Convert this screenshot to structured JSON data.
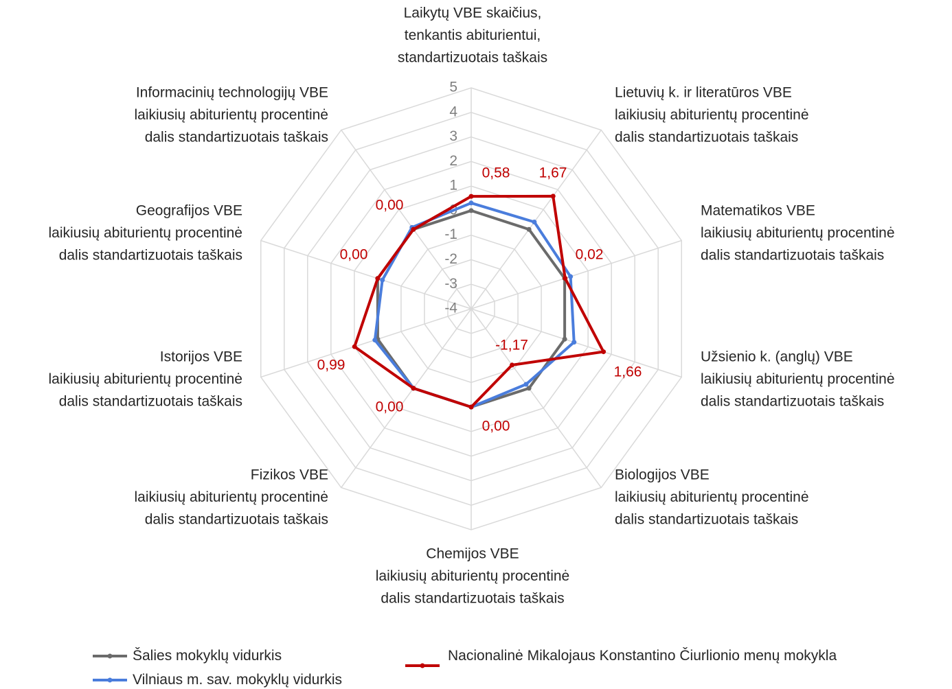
{
  "chart_data": {
    "type": "radar",
    "categories": [
      [
        "Laikytų VBE skaičius,",
        "tenkantis abiturientui,",
        "standartizuotais taškais"
      ],
      [
        "Lietuvių k. ir literatūros VBE",
        "laikiusių abiturientų procentinė",
        "dalis standartizuotais taškais"
      ],
      [
        "Matematikos VBE",
        "laikiusių abiturientų procentinė",
        "dalis standartizuotais taškais"
      ],
      [
        "Užsienio k. (anglų) VBE",
        "laikiusių abiturientų procentinė",
        "dalis standartizuotais taškais"
      ],
      [
        "Biologijos VBE",
        "laikiusių abiturientų procentinė",
        "dalis standartizuotais taškais"
      ],
      [
        "Chemijos VBE",
        "laikiusių abiturientų procentinė",
        "dalis standartizuotais taškais"
      ],
      [
        "Fizikos VBE",
        "laikiusių abiturientų procentinė",
        "dalis standartizuotais taškais"
      ],
      [
        "Istorijos VBE",
        "laikiusių abiturientų procentinė",
        "dalis standartizuotais taškais"
      ],
      [
        "Geografijos VBE",
        "laikiusių abiturientų procentinė",
        "dalis standartizuotais taškais"
      ],
      [
        "Informacinių technologijų VBE",
        "laikiusių abiturientų procentinė",
        "dalis standartizuotais taškais"
      ]
    ],
    "series": [
      {
        "name": "Šalies mokyklų vidurkis",
        "color": "#6b6b6b",
        "values": [
          0,
          0,
          0,
          0,
          0,
          0,
          0,
          0,
          0,
          0
        ]
      },
      {
        "name": "Vilniaus m. sav. mokyklų vidurkis",
        "color": "#4a7ddc",
        "values": [
          0.31,
          0.37,
          0.25,
          0.4,
          -0.2,
          0,
          0,
          0.12,
          -0.2,
          0.1
        ]
      },
      {
        "name": "Nacionalinė Mikalojaus Konstantino Čiurlionio menų mokykla",
        "color": "#c00000",
        "values": [
          0.58,
          1.67,
          0.02,
          1.66,
          -1.17,
          0.0,
          0.0,
          0.99,
          0.0,
          0.0
        ],
        "value_labels": [
          "0,58",
          "1,67",
          "0,02",
          "1,66",
          "-1,17",
          "0,00",
          "0,00",
          "0,99",
          "0,00",
          "0,00"
        ]
      }
    ],
    "rlim": [
      -4,
      5
    ],
    "rticks": [
      -4,
      -3,
      -2,
      -1,
      0,
      1,
      2,
      3,
      4,
      5
    ],
    "grid": true
  }
}
